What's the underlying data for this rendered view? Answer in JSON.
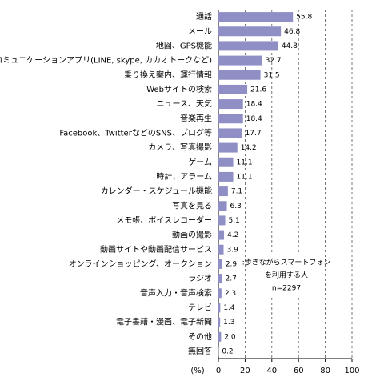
{
  "chart_data": {
    "type": "bar",
    "orientation": "horizontal",
    "categories": [
      "通話",
      "メール",
      "地図、GPS機能",
      "コミュニケーションアプリ(LINE, skype, カカオトークなど)",
      "乗り換え案内、運行情報",
      "Webサイトの検索",
      "ニュース、天気",
      "音楽再生",
      "Facebook、TwitterなどのSNS、ブログ等",
      "カメラ、写真撮影",
      "ゲーム",
      "時計、アラーム",
      "カレンダー・スケジュール機能",
      "写真を見る",
      "メモ帳、ボイスレコーダー",
      "動画の撮影",
      "動画サイトや動画配信サービス",
      "オンラインショッピング、オークション",
      "ラジオ",
      "音声入力・音声検索",
      "テレビ",
      "電子書籍・漫画、電子新聞",
      "その他",
      "無回答"
    ],
    "values": [
      55.8,
      46.8,
      44.8,
      32.7,
      31.5,
      21.6,
      18.4,
      18.4,
      17.7,
      14.2,
      11.1,
      11.1,
      7.1,
      6.3,
      5.1,
      4.2,
      3.9,
      2.9,
      2.7,
      2.3,
      1.4,
      1.3,
      2.0,
      0.2
    ],
    "value_labels": [
      "55.8",
      "46.8",
      "44.8",
      "32.7",
      "31.5",
      "21.6",
      "18.4",
      "18.4",
      "17.7",
      "14.2",
      "11.1",
      "11.1",
      "7.1",
      "6.3",
      "5.1",
      "4.2",
      "3.9",
      "2.9",
      "2.7",
      "2.3",
      "1.4",
      "1.3",
      "2.0",
      "0.2"
    ],
    "color": "#8f8fc6",
    "xlim": [
      0,
      100
    ],
    "xticks": [
      0,
      20,
      40,
      60,
      80,
      100
    ],
    "grid": true,
    "xlabel": "(%)",
    "annotation": [
      ":歩きながらスマートフォン",
      "を利用する人",
      "n=2297"
    ]
  }
}
